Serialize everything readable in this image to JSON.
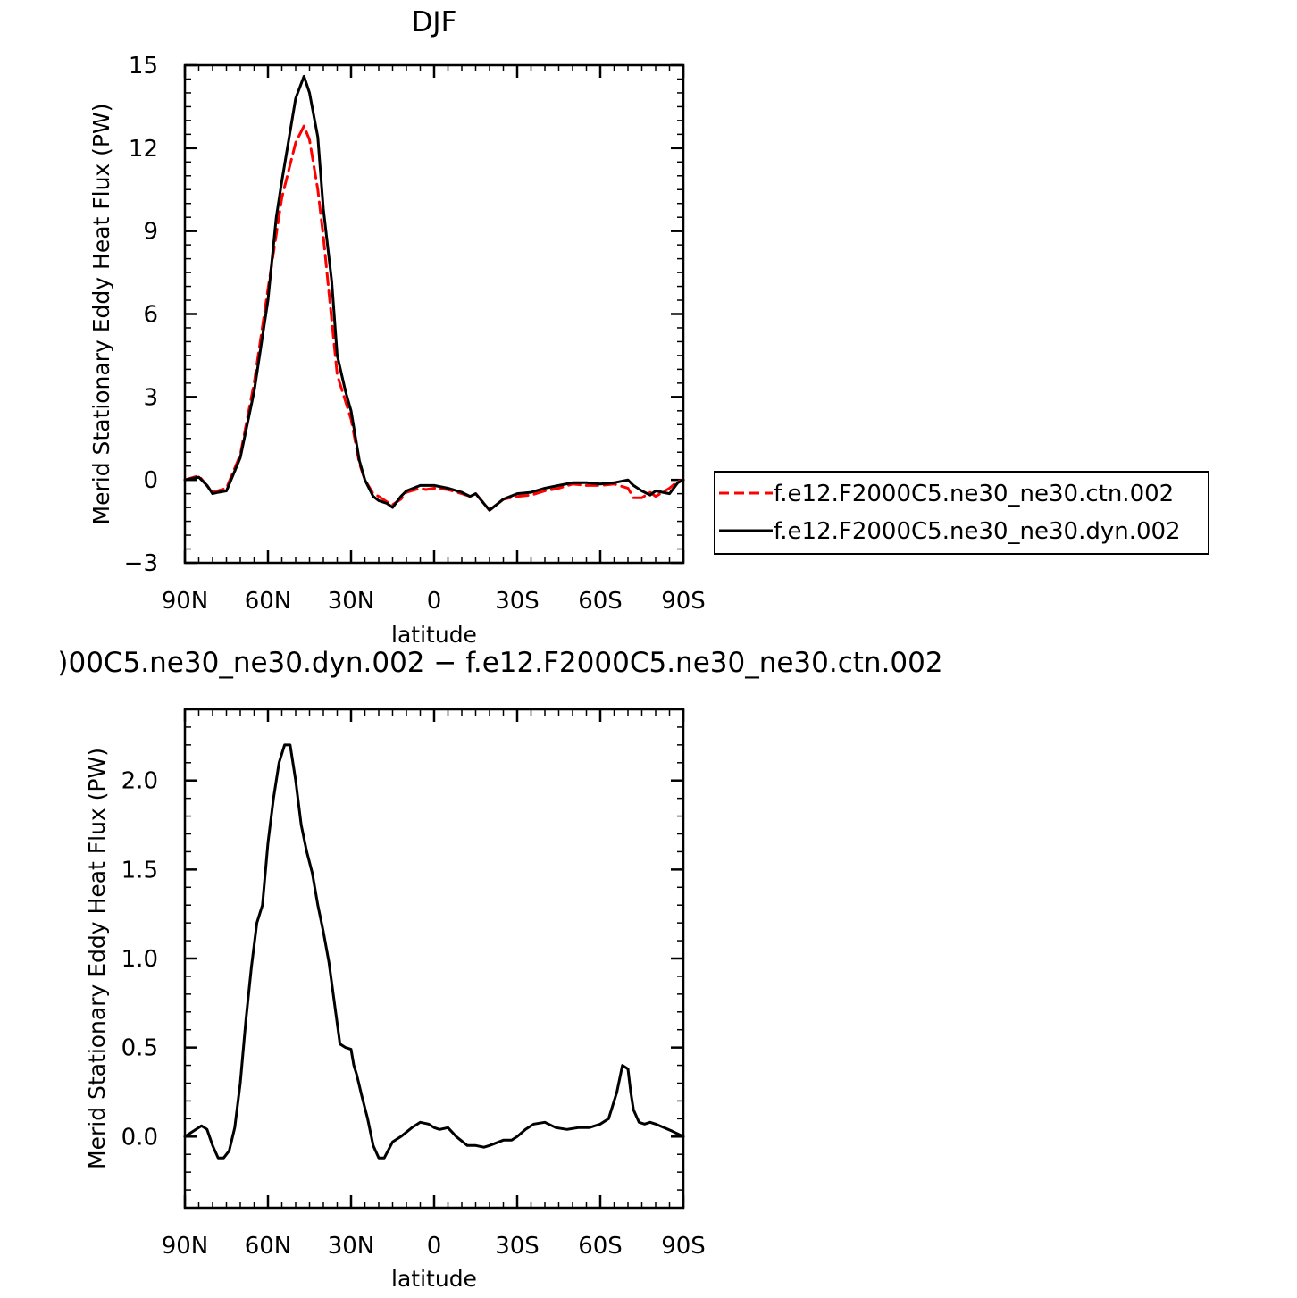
{
  "chart_data": [
    {
      "type": "line",
      "title": "DJF",
      "xlabel": "latitude",
      "ylabel": "Merid Stationary Eddy Heat Flux (PW)",
      "xlim": [
        90,
        -90
      ],
      "ylim": [
        -3,
        15
      ],
      "x_ticks": [
        90,
        60,
        30,
        0,
        -30,
        -60,
        -90
      ],
      "x_tick_labels": [
        "90N",
        "60N",
        "30N",
        "0",
        "30S",
        "60S",
        "90S"
      ],
      "y_ticks": [
        -3,
        0,
        3,
        6,
        9,
        12,
        15
      ],
      "y_tick_labels": [
        "−3",
        "0",
        "3",
        "6",
        "9",
        "12",
        "15"
      ],
      "grid": false,
      "legend_position": "right",
      "series": [
        {
          "name": "f.e12.F2000C5.ne30_ne30.ctn.002",
          "color": "#ff0000",
          "dash": "dashed",
          "x": [
            90,
            85,
            80,
            75,
            70,
            65,
            60,
            55,
            50,
            47,
            45,
            42,
            40,
            37,
            35,
            30,
            27,
            25,
            22,
            20,
            17,
            15,
            12,
            10,
            5,
            3,
            0,
            -5,
            -10,
            -13,
            -15,
            -20,
            -25,
            -30,
            -35,
            -40,
            -45,
            -50,
            -55,
            -60,
            -65,
            -70,
            -72,
            -75,
            -78,
            -80,
            -85,
            -88,
            -90
          ],
          "y": [
            0,
            0.15,
            -0.45,
            -0.3,
            0.9,
            3.5,
            6.9,
            10.2,
            12.2,
            12.8,
            12.3,
            10.5,
            8.8,
            5.8,
            3.8,
            2.2,
            0.6,
            0,
            -0.5,
            -0.6,
            -0.8,
            -0.9,
            -0.7,
            -0.45,
            -0.3,
            -0.35,
            -0.3,
            -0.35,
            -0.5,
            -0.6,
            -0.5,
            -1.1,
            -0.7,
            -0.6,
            -0.55,
            -0.4,
            -0.3,
            -0.15,
            -0.2,
            -0.2,
            -0.15,
            -0.3,
            -0.65,
            -0.65,
            -0.45,
            -0.6,
            -0.3,
            -0.05,
            0
          ]
        },
        {
          "name": "f.e12.F2000C5.ne30_ne30.dyn.002",
          "color": "#000000",
          "dash": "solid",
          "x": [
            90,
            85,
            82,
            80,
            78,
            75,
            70,
            65,
            60,
            57,
            55,
            50,
            47,
            45,
            42,
            40,
            37,
            35,
            32,
            30,
            27,
            25,
            22,
            20,
            17,
            15,
            12,
            10,
            5,
            3,
            0,
            -5,
            -10,
            -13,
            -15,
            -20,
            -25,
            -30,
            -35,
            -40,
            -45,
            -50,
            -55,
            -60,
            -65,
            -70,
            -72,
            -75,
            -78,
            -80,
            -85,
            -88,
            -90
          ],
          "y": [
            0,
            0.1,
            -0.2,
            -0.5,
            -0.45,
            -0.4,
            0.8,
            3.2,
            6.5,
            9.5,
            10.8,
            13.8,
            14.6,
            14,
            12.4,
            9.8,
            7.2,
            4.5,
            3.2,
            2.5,
            0.7,
            0,
            -0.6,
            -0.75,
            -0.85,
            -1,
            -0.6,
            -0.4,
            -0.2,
            -0.2,
            -0.2,
            -0.3,
            -0.45,
            -0.6,
            -0.5,
            -1.1,
            -0.7,
            -0.5,
            -0.45,
            -0.3,
            -0.2,
            -0.1,
            -0.1,
            -0.15,
            -0.1,
            0,
            -0.2,
            -0.4,
            -0.55,
            -0.4,
            -0.5,
            -0.1,
            0
          ]
        }
      ]
    },
    {
      "type": "line",
      "title": ")00C5.ne30_ne30.dyn.002 − f.e12.F2000C5.ne30_ne30.ctn.002",
      "xlabel": "latitude",
      "ylabel": "Merid Stationary Eddy Heat Flux (PW)",
      "xlim": [
        90,
        -90
      ],
      "ylim": [
        -0.4,
        2.4
      ],
      "x_ticks": [
        90,
        60,
        30,
        0,
        -30,
        -60,
        -90
      ],
      "x_tick_labels": [
        "90N",
        "60N",
        "30N",
        "0",
        "30S",
        "60S",
        "90S"
      ],
      "y_ticks": [
        0,
        0.5,
        1.0,
        1.5,
        2.0
      ],
      "y_tick_labels": [
        "0.0",
        "0.5",
        "1.0",
        "1.5",
        "2.0"
      ],
      "grid": false,
      "series": [
        {
          "color": "#000000",
          "dash": "solid",
          "x": [
            90,
            86,
            84,
            82,
            80,
            78,
            76,
            74,
            72,
            70,
            68,
            66,
            64,
            62,
            60,
            58,
            56,
            54,
            52,
            50,
            48,
            46,
            44,
            42,
            40,
            38,
            36,
            34,
            32,
            30,
            29,
            28,
            26,
            24,
            22,
            20,
            18,
            15,
            12,
            8,
            5,
            2,
            0,
            -2,
            -5,
            -8,
            -12,
            -15,
            -18,
            -20,
            -25,
            -28,
            -30,
            -33,
            -36,
            -40,
            -44,
            -48,
            -52,
            -56,
            -60,
            -63,
            -66,
            -68,
            -70,
            -71,
            -72,
            -74,
            -76,
            -78,
            -80,
            -83,
            -86,
            -90
          ],
          "y": [
            0,
            0.04,
            0.06,
            0.04,
            -0.05,
            -0.12,
            -0.12,
            -0.08,
            0.05,
            0.3,
            0.65,
            0.95,
            1.2,
            1.3,
            1.65,
            1.9,
            2.1,
            2.2,
            2.2,
            2.0,
            1.75,
            1.6,
            1.48,
            1.3,
            1.15,
            0.98,
            0.75,
            0.52,
            0.5,
            0.49,
            0.4,
            0.35,
            0.22,
            0.1,
            -0.05,
            -0.12,
            -0.12,
            -0.03,
            0.0,
            0.05,
            0.08,
            0.07,
            0.05,
            0.04,
            0.05,
            0.0,
            -0.05,
            -0.05,
            -0.06,
            -0.05,
            -0.02,
            -0.02,
            0.0,
            0.04,
            0.07,
            0.08,
            0.05,
            0.04,
            0.05,
            0.05,
            0.07,
            0.1,
            0.25,
            0.4,
            0.38,
            0.25,
            0.15,
            0.08,
            0.07,
            0.08,
            0.07,
            0.05,
            0.03,
            0.0
          ]
        }
      ]
    }
  ]
}
